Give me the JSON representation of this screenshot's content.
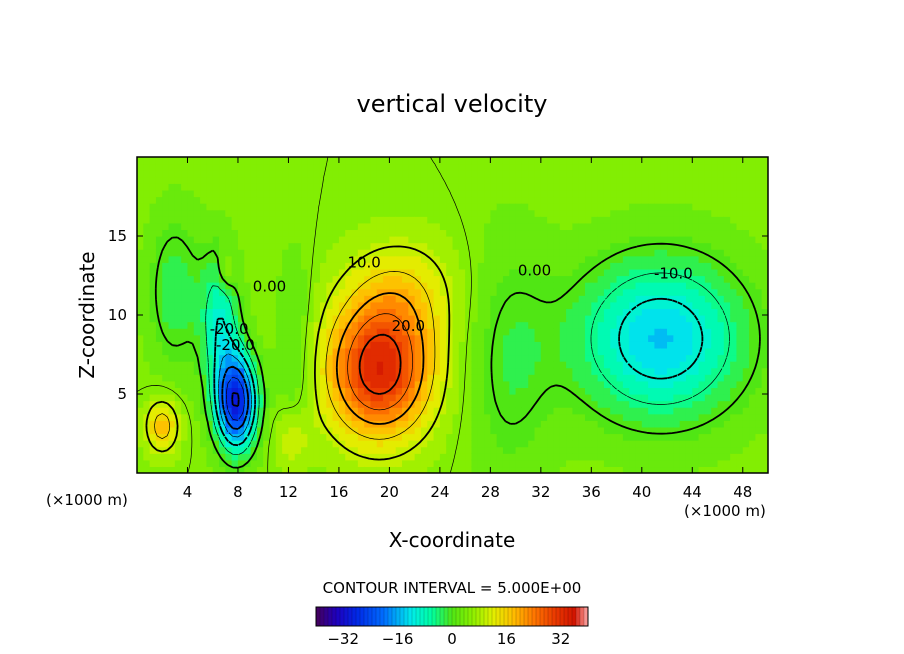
{
  "chart_data": {
    "type": "heatmap",
    "title": "vertical velocity",
    "xlabel": "X-coordinate",
    "ylabel": "Z-coordinate",
    "x_unit_label": "(×1000 m)",
    "y_unit_label": "(×1000 m)",
    "xlim": [
      0,
      50
    ],
    "ylim": [
      0,
      20
    ],
    "x_ticks": [
      4,
      8,
      12,
      16,
      20,
      24,
      28,
      32,
      36,
      40,
      44,
      48
    ],
    "y_ticks": [
      5,
      10,
      15
    ],
    "contour_interval_text": "CONTOUR INTERVAL = 5.000E+00",
    "contour_interval": 5.0,
    "color_range": [
      -40,
      40
    ],
    "colorbar_ticks": [
      -32,
      -16,
      0,
      16,
      32
    ],
    "contour_labels": [
      {
        "text": "10.0",
        "x": 18.0,
        "z": 13.0
      },
      {
        "text": "20.0",
        "x": 21.5,
        "z": 9.0
      },
      {
        "text": "0.00",
        "x": 10.5,
        "z": 11.5
      },
      {
        "text": "0.00",
        "x": 31.5,
        "z": 12.5
      },
      {
        "text": "-10.0",
        "x": 42.5,
        "z": 12.3
      },
      {
        "text": "-20.0",
        "x": 7.3,
        "z": 8.8
      },
      {
        "text": "-20.0",
        "x": 7.8,
        "z": 7.8
      }
    ],
    "features": [
      {
        "kind": "max",
        "x": 19.0,
        "z": 6.5,
        "value": 30
      },
      {
        "kind": "min",
        "x": 7.8,
        "z": 4.5,
        "value": -30
      },
      {
        "kind": "min",
        "x": 41.0,
        "z": 8.5,
        "value": -12
      },
      {
        "kind": "max",
        "x": 2.0,
        "z": 3.0,
        "value": 13
      }
    ]
  }
}
